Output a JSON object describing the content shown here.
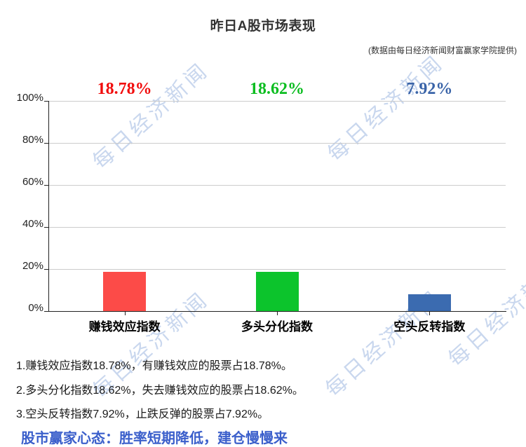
{
  "title": "昨日A股市场表现",
  "subtitle": "(数据由每日经济新闻财富赢家学院提供)",
  "watermark": {
    "text": "每日经济新闻",
    "color": "#c9d7ee"
  },
  "chart_data": {
    "type": "bar",
    "categories": [
      "赚钱效应指数",
      "多头分化指数",
      "空头反转指数"
    ],
    "values": [
      18.78,
      18.62,
      7.92
    ],
    "value_labels": [
      "18.78%",
      "18.62%",
      "7.92%"
    ],
    "bar_colors": [
      "#fc4b48",
      "#0cc42c",
      "#3b6bb0"
    ],
    "label_colors": [
      "#f10c0c",
      "#0bbd20",
      "#3a64a8"
    ],
    "title": "昨日A股市场表现",
    "xlabel": "",
    "ylabel": "",
    "ylim": [
      0,
      100
    ],
    "ytick_labels": [
      "100%",
      "80%",
      "60%",
      "40%",
      "20%",
      "0%"
    ],
    "grid": true,
    "legend": false
  },
  "notes": [
    "1.赚钱效应指数18.78%，有赚钱效应的股票占18.78%。",
    "2.多头分化指数18.62%，失去赚钱效应的股票占18.62%。",
    "3.空头反转指数7.92%，止跌反弹的股票占7.92%。"
  ],
  "footer": {
    "text": "股市赢家心态：胜率短期降低，建仓慢慢来",
    "color": "#3b5fcb"
  }
}
